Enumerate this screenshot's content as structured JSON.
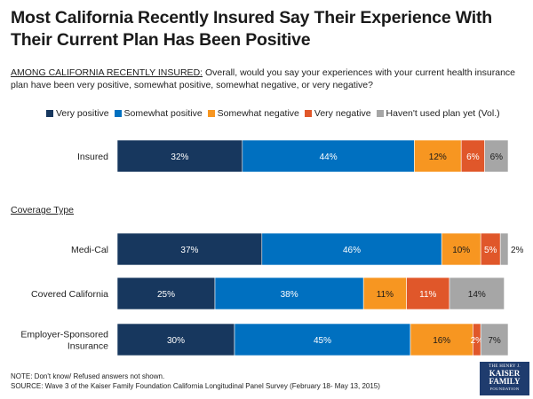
{
  "title": "Most California Recently Insured Say Their Experience With Their Current Plan Has Been Positive",
  "question": {
    "lead": "AMONG CALIFORNIA RECENTLY INSURED:",
    "text": " Overall, would you say your experiences with your current health insurance plan have been very positive, somewhat positive, somewhat negative, or very negative?"
  },
  "section_label": "Coverage Type",
  "notes": {
    "note": "NOTE: Don't know/ Refused answers not shown.",
    "source": "SOURCE: Wave 3 of the Kaiser Family Foundation California Longitudinal Panel Survey (February 18- May 13, 2015)"
  },
  "logo": {
    "line1": "THE HENRY J.",
    "line2a": "KAISER",
    "line2b": "FAMILY",
    "line3": "FOUNDATION"
  },
  "chart_data": {
    "type": "bar",
    "orientation": "horizontal",
    "stacked": true,
    "title": "Most California Recently Insured Say Their Experience With Their Current Plan Has Been Positive",
    "legend_position": "top",
    "categories": [
      "Insured",
      "Medi-Cal",
      "Covered California",
      "Employer-Sponsored Insurance"
    ],
    "category_lines": [
      [
        "Insured"
      ],
      [
        "Medi-Cal"
      ],
      [
        "Covered California"
      ],
      [
        "Employer-Sponsored",
        "Insurance"
      ]
    ],
    "series": [
      {
        "name": "Very positive",
        "color": "#17375e",
        "label_color": "#ffffff",
        "values": [
          32,
          37,
          25,
          30
        ],
        "labels": [
          "32%",
          "37%",
          "25%",
          "30%"
        ]
      },
      {
        "name": "Somewhat positive",
        "color": "#0070c0",
        "label_color": "#ffffff",
        "values": [
          44,
          46,
          38,
          45
        ],
        "labels": [
          "44%",
          "46%",
          "38%",
          "45%"
        ]
      },
      {
        "name": "Somewhat negative",
        "color": "#f79621",
        "label_color": "#1a1a1a",
        "values": [
          12,
          10,
          11,
          16
        ],
        "labels": [
          "12%",
          "10%",
          "11%",
          "16%"
        ]
      },
      {
        "name": "Very negative",
        "color": "#e0572a",
        "label_color": "#ffffff",
        "values": [
          6,
          5,
          11,
          2
        ],
        "labels": [
          "6%",
          "5%",
          "11%",
          "2%"
        ]
      },
      {
        "name": "Haven't used plan yet (Vol.)",
        "color": "#a6a6a6",
        "label_color": "#1a1a1a",
        "values": [
          6,
          2,
          14,
          7
        ],
        "labels": [
          "6%",
          "2%",
          "14%",
          "7%"
        ]
      }
    ],
    "xlim": [
      0,
      100
    ]
  }
}
